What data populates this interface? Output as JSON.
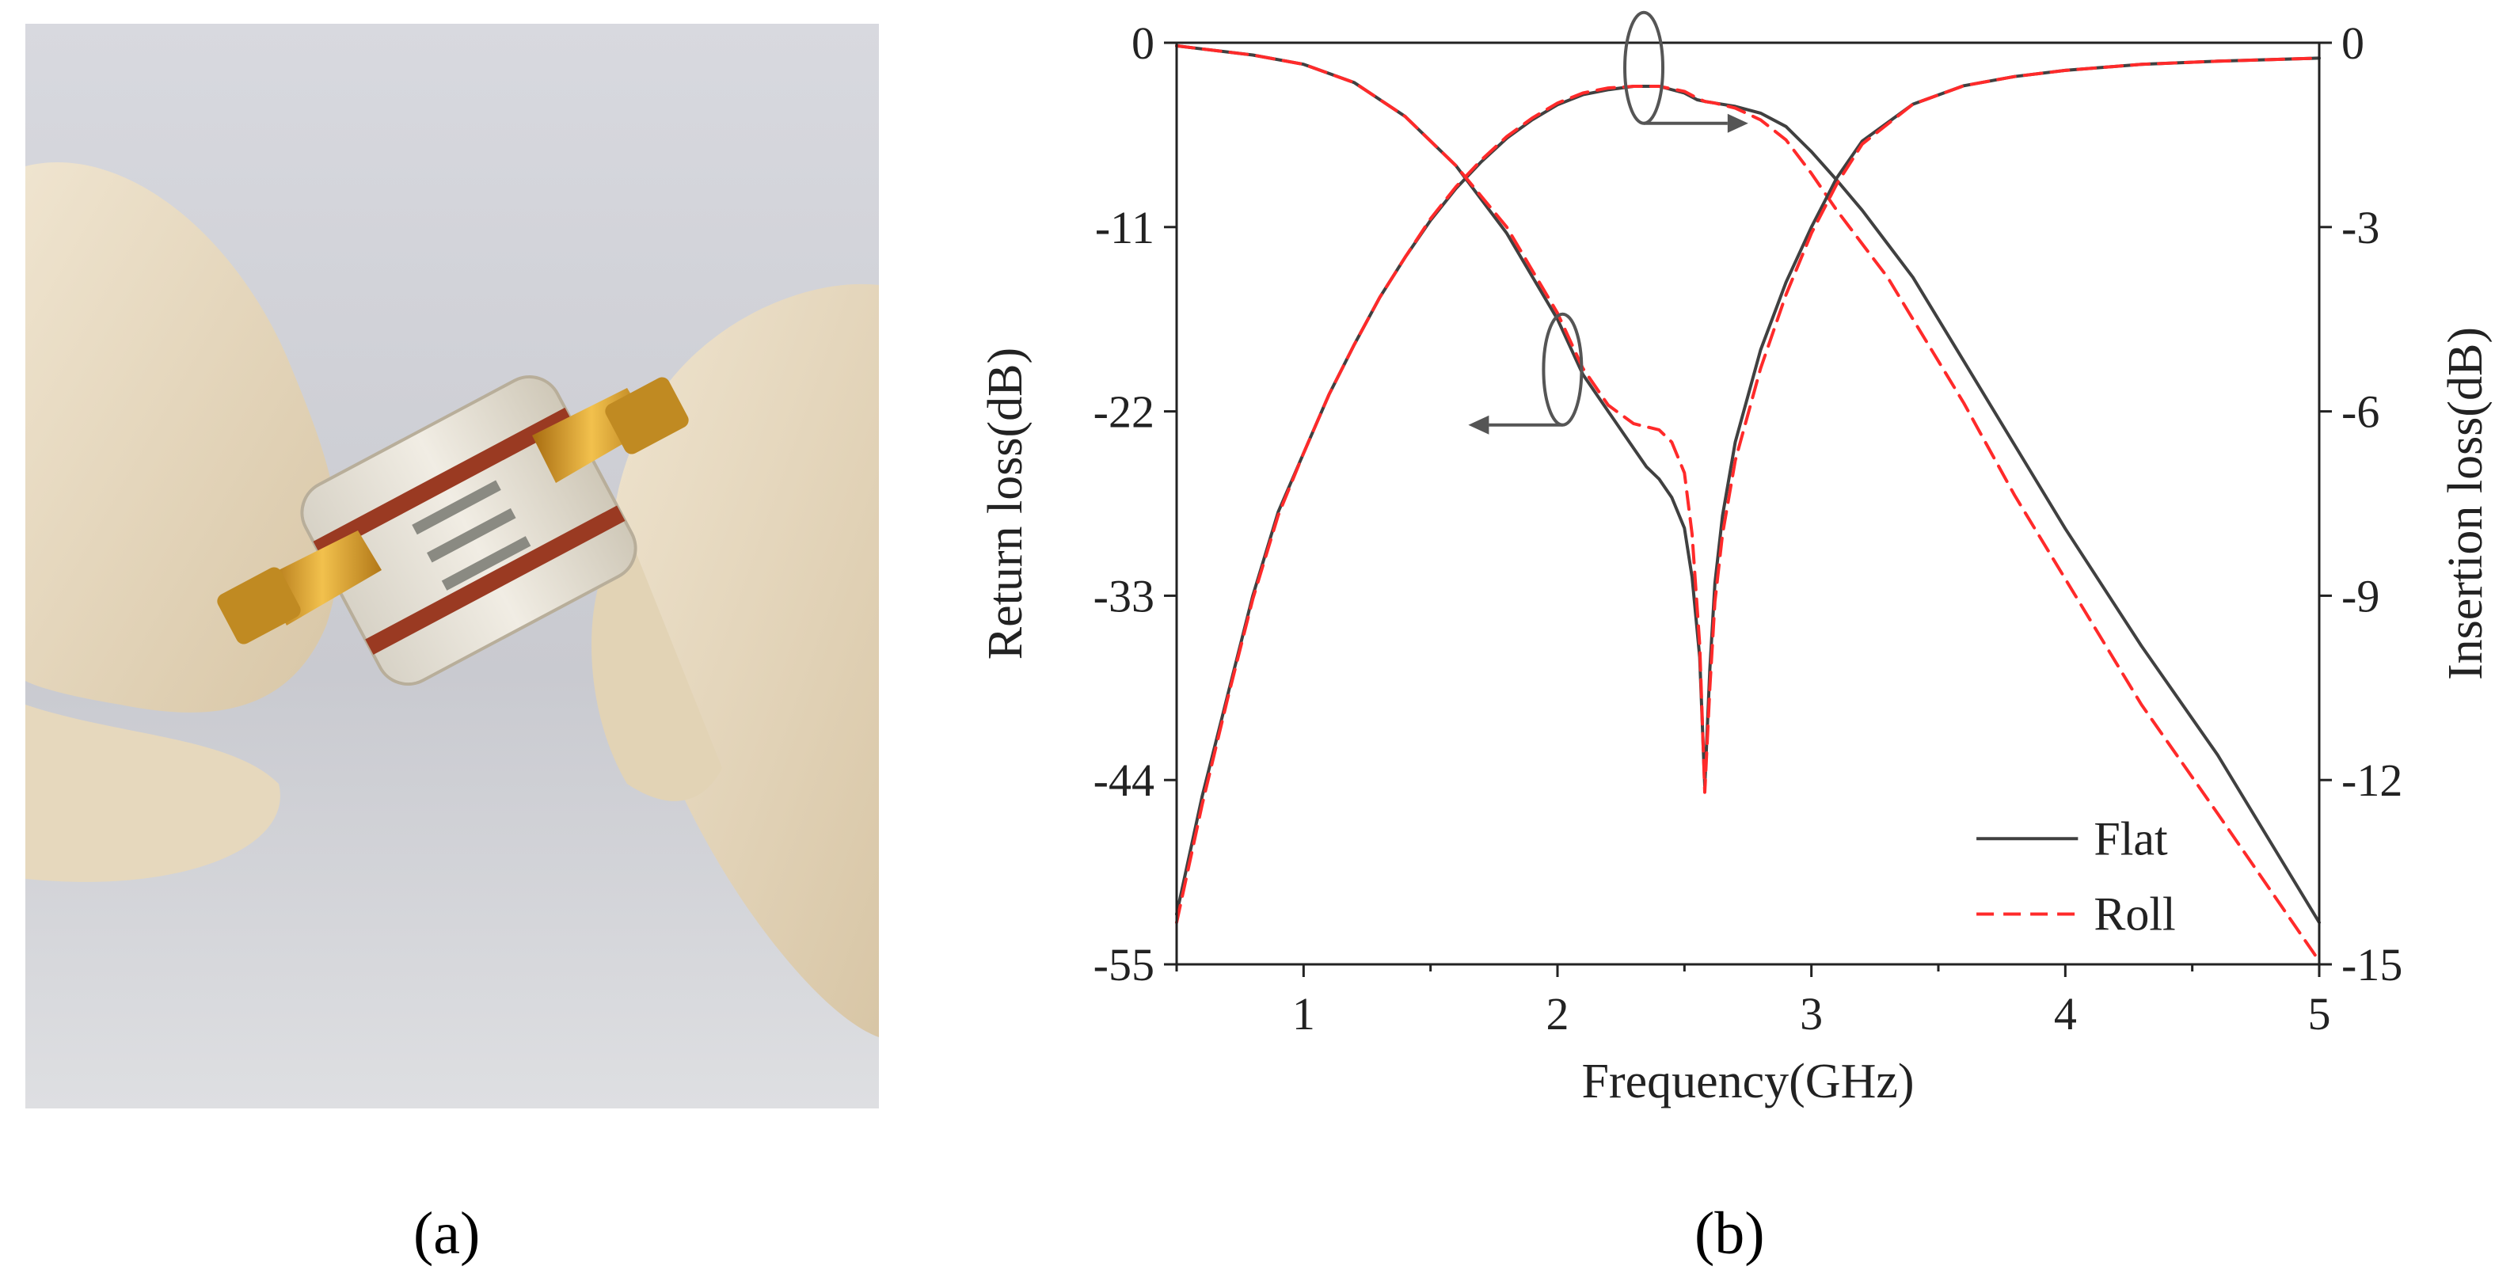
{
  "panels": {
    "a_label": "(a)",
    "b_label": "(b)"
  },
  "chart_data": {
    "type": "line",
    "title": "",
    "xlabel": "Frequency(GHz)",
    "ylabel_left": "Return loss(dB)",
    "ylabel_right": "Insertion loss(dB)",
    "xlim": [
      0.5,
      5
    ],
    "ylim_left": [
      -55,
      0
    ],
    "ylim_right": [
      -15,
      0
    ],
    "x_ticks": [
      1,
      2,
      3,
      4,
      5
    ],
    "y_left_ticks": [
      0,
      -11,
      -22,
      -33,
      -44,
      -55
    ],
    "y_right_ticks": [
      0,
      -3,
      -6,
      -9,
      -12,
      -15
    ],
    "grid": false,
    "legend_position": "bottom-right",
    "legend": [
      "Flat",
      "Roll"
    ],
    "series": [
      {
        "name": "Flat",
        "metric": "Return loss",
        "axis": "left",
        "color": "#404040",
        "dash": "solid",
        "x": [
          0.5,
          0.6,
          0.7,
          0.8,
          0.9,
          1.0,
          1.1,
          1.2,
          1.3,
          1.4,
          1.5,
          1.6,
          1.7,
          1.8,
          1.9,
          2.0,
          2.1,
          2.2,
          2.3,
          2.4,
          2.5,
          2.55,
          2.58,
          2.62,
          2.7,
          2.8,
          2.9,
          3.0,
          3.1,
          3.2,
          3.3,
          3.4,
          3.5,
          3.6,
          3.8,
          4.0,
          4.3,
          4.6,
          5.0
        ],
        "y": [
          -52,
          -45,
          -39,
          -33,
          -28,
          -24.5,
          -21,
          -18,
          -15.2,
          -12.8,
          -10.6,
          -8.7,
          -7.1,
          -5.7,
          -4.6,
          -3.7,
          -3.1,
          -2.8,
          -2.6,
          -2.6,
          -3.0,
          -3.4,
          -3.5,
          -3.6,
          -3.8,
          -4.2,
          -5.0,
          -6.5,
          -8.2,
          -10.0,
          -12.0,
          -14.0,
          -16.5,
          -19.0,
          -24.0,
          -29.0,
          -36.0,
          -42.5,
          -52.5
        ]
      },
      {
        "name": "Roll",
        "metric": "Return loss",
        "axis": "left",
        "color": "#ff2a2a",
        "dash": "dashed",
        "x": [
          0.5,
          0.6,
          0.7,
          0.8,
          0.9,
          1.0,
          1.1,
          1.2,
          1.3,
          1.4,
          1.5,
          1.6,
          1.7,
          1.8,
          1.9,
          2.0,
          2.1,
          2.2,
          2.3,
          2.4,
          2.5,
          2.55,
          2.58,
          2.62,
          2.7,
          2.8,
          2.9,
          3.0,
          3.1,
          3.2,
          3.3,
          3.4,
          3.5,
          3.6,
          3.8,
          4.0,
          4.3,
          4.6,
          5.0
        ],
        "y": [
          -52.5,
          -45.5,
          -39.2,
          -33.2,
          -28.2,
          -24.5,
          -21,
          -18,
          -15.2,
          -12.8,
          -10.5,
          -8.6,
          -7.0,
          -5.6,
          -4.5,
          -3.6,
          -3.0,
          -2.7,
          -2.6,
          -2.6,
          -2.9,
          -3.3,
          -3.5,
          -3.6,
          -3.9,
          -4.6,
          -5.8,
          -7.8,
          -10.0,
          -12.0,
          -14.0,
          -16.5,
          -19.0,
          -21.5,
          -27.0,
          -32.0,
          -39.5,
          -46.0,
          -54.8
        ]
      },
      {
        "name": "Flat",
        "metric": "Insertion loss",
        "axis": "right",
        "color": "#404040",
        "dash": "solid",
        "x": [
          0.5,
          0.6,
          0.8,
          1.0,
          1.2,
          1.4,
          1.6,
          1.8,
          1.9,
          2.0,
          2.1,
          2.2,
          2.3,
          2.35,
          2.4,
          2.45,
          2.5,
          2.53,
          2.56,
          2.58,
          2.6,
          2.62,
          2.65,
          2.7,
          2.8,
          2.9,
          3.0,
          3.1,
          3.2,
          3.4,
          3.6,
          3.8,
          4.0,
          4.3,
          4.6,
          5.0
        ],
        "y": [
          -0.05,
          -0.1,
          -0.2,
          -0.35,
          -0.65,
          -1.2,
          -2.0,
          -3.1,
          -3.8,
          -4.5,
          -5.4,
          -6.0,
          -6.6,
          -6.9,
          -7.1,
          -7.4,
          -7.9,
          -8.7,
          -10.0,
          -12.1,
          -10.2,
          -8.8,
          -7.7,
          -6.5,
          -5.0,
          -3.9,
          -3.0,
          -2.2,
          -1.6,
          -1.0,
          -0.7,
          -0.55,
          -0.45,
          -0.35,
          -0.3,
          -0.25
        ]
      },
      {
        "name": "Roll",
        "metric": "Insertion loss",
        "axis": "right",
        "color": "#ff2a2a",
        "dash": "dashed",
        "x": [
          0.5,
          0.6,
          0.8,
          1.0,
          1.2,
          1.4,
          1.6,
          1.8,
          1.9,
          2.0,
          2.1,
          2.2,
          2.3,
          2.35,
          2.4,
          2.45,
          2.5,
          2.53,
          2.56,
          2.58,
          2.6,
          2.62,
          2.65,
          2.7,
          2.8,
          2.9,
          3.0,
          3.1,
          3.2,
          3.4,
          3.6,
          3.8,
          4.0,
          4.3,
          4.6,
          5.0
        ],
        "y": [
          -0.05,
          -0.1,
          -0.2,
          -0.35,
          -0.65,
          -1.2,
          -2.0,
          -3.0,
          -3.7,
          -4.4,
          -5.3,
          -5.9,
          -6.2,
          -6.25,
          -6.3,
          -6.5,
          -7.0,
          -8.0,
          -9.8,
          -12.2,
          -10.5,
          -9.1,
          -8.0,
          -6.8,
          -5.3,
          -4.1,
          -3.1,
          -2.3,
          -1.65,
          -1.0,
          -0.7,
          -0.55,
          -0.45,
          -0.35,
          -0.3,
          -0.25
        ]
      }
    ]
  }
}
